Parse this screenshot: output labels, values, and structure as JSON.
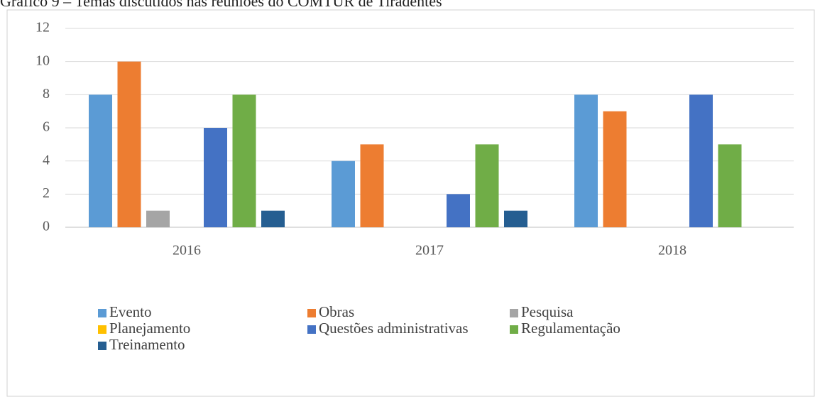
{
  "chart_data": {
    "type": "bar",
    "title": "Gráfico 9 – Temas discutidos nas reuniões do COMTUR de Tiradentes",
    "categories": [
      "2016",
      "2017",
      "2018"
    ],
    "series": [
      {
        "name": "Evento",
        "color": "#5b9bd5",
        "values": [
          8,
          4,
          8
        ]
      },
      {
        "name": "Obras",
        "color": "#ed7d31",
        "values": [
          10,
          5,
          7
        ]
      },
      {
        "name": "Pesquisa",
        "color": "#a5a5a5",
        "values": [
          1,
          0,
          0
        ]
      },
      {
        "name": "Planejamento",
        "color": "#ffc000",
        "values": [
          0,
          0,
          0
        ]
      },
      {
        "name": "Questões administrativas",
        "color": "#4472c4",
        "values": [
          6,
          2,
          8
        ]
      },
      {
        "name": "Regulamentação",
        "color": "#70ad47",
        "values": [
          8,
          5,
          5
        ]
      },
      {
        "name": "Treinamento",
        "color": "#255e91",
        "values": [
          1,
          1,
          0
        ]
      }
    ],
    "ylim": [
      0,
      12
    ],
    "yticks": [
      0,
      2,
      4,
      6,
      8,
      10,
      12
    ],
    "grid": true,
    "legend": "bottom"
  }
}
